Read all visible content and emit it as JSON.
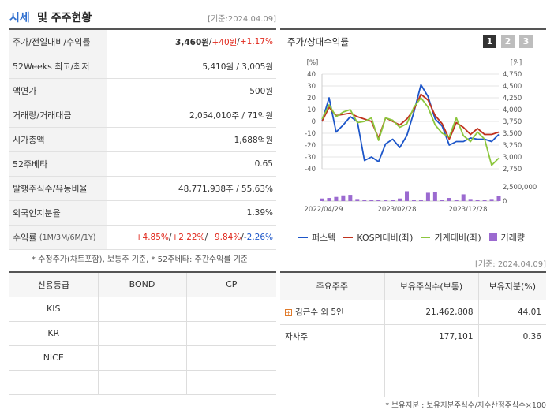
{
  "header": {
    "title_part1": "시세",
    "title_part2": "및 주주현황",
    "date": "[기준:2024.04.09]"
  },
  "price_table": {
    "rows": [
      {
        "label": "주가/전일대비/수익률",
        "price": "3,460원",
        "sep1": " / ",
        "change": "+40원",
        "sep2": " / ",
        "rate": "+1.17%"
      },
      {
        "label": "52Weeks 최고/최저",
        "value": "5,410원 / 3,005원"
      },
      {
        "label": "액면가",
        "value": "500원"
      },
      {
        "label": "거래량/거래대금",
        "value": "2,054,010주 / 71억원"
      },
      {
        "label": "시가총액",
        "value": "1,688억원"
      },
      {
        "label": "52주베타",
        "value": "0.65"
      },
      {
        "label": "발행주식수/유동비율",
        "value": "48,771,938주 / 55.63%"
      },
      {
        "label": "외국인지분율",
        "value": "1.39%"
      }
    ],
    "returns": {
      "label": "수익률",
      "periods": "(1M/3M/6M/1Y)",
      "r1": "+4.85%",
      "r2": "+2.22%",
      "r3": "+9.84%",
      "r4": "-2.26%",
      "slash": "/ "
    },
    "note": "* 수정주가(차트포함), 보통주 기준, * 52주베타: 주간수익률 기준"
  },
  "chart": {
    "title": "주가/상대수익률",
    "period_buttons": [
      "1",
      "2",
      "3"
    ],
    "active_button": "1",
    "date2": "[기준: 2024.04.09]"
  },
  "chart_data": {
    "type": "line",
    "left_axis_unit": "[%]",
    "right_axis_unit": "[원]",
    "y_left_ticks": [
      40,
      30,
      20,
      10,
      0,
      -10,
      -20,
      -30,
      -40
    ],
    "y_left_lim": [
      -40,
      40
    ],
    "y_right_ticks": [
      "4,750",
      "4,500",
      "4,250",
      "4,000",
      "3,750",
      "3,500",
      "3,250",
      "3,000",
      "2,750"
    ],
    "y_right_lim": [
      2750,
      4750
    ],
    "volume_tick": "2,500,000",
    "volume_zero": "0",
    "x_tick_labels": [
      "2022/04/29",
      "2023/02/28",
      "2023/12/28"
    ],
    "series": [
      {
        "name": "퍼스텍",
        "color": "#1d56c9",
        "values": [
          0,
          20,
          -9,
          -3,
          4,
          0,
          -33,
          -30,
          -34,
          -19,
          -15,
          -22,
          -12,
          8,
          31,
          21,
          2,
          -4,
          -20,
          -17,
          -17,
          -14,
          -15,
          -15,
          -17,
          -11
        ]
      },
      {
        "name": "KOSPI대비(좌)",
        "color": "#c0321e",
        "values": [
          0,
          12,
          5,
          6,
          7,
          4,
          2,
          0,
          -14,
          3,
          0,
          -3,
          2,
          10,
          23,
          18,
          5,
          -2,
          -15,
          -1,
          -5,
          -11,
          -6,
          -11,
          -11,
          -9
        ]
      },
      {
        "name": "기계대비(좌)",
        "color": "#8cc63e",
        "values": [
          2,
          14,
          4,
          8,
          10,
          -1,
          0,
          3,
          -16,
          3,
          1,
          -5,
          -2,
          12,
          20,
          12,
          -3,
          -10,
          -13,
          3,
          -12,
          -17,
          -9,
          -15,
          -37,
          -31
        ]
      },
      {
        "name": "거래량",
        "color": "#9b6ad0",
        "values": [
          0.5,
          0.6,
          0.8,
          1.1,
          1.2,
          0.4,
          0.3,
          0.3,
          0.2,
          0.2,
          0.3,
          0.5,
          1.9,
          0.2,
          0.2,
          1.6,
          1.7,
          0.3,
          0.6,
          0.3,
          1.3,
          0.4,
          0.3,
          0.2,
          0.4,
          1.0
        ]
      }
    ]
  },
  "credit_table": {
    "headers": [
      "신용등급",
      "BOND",
      "CP"
    ],
    "rows": [
      [
        "KIS",
        "",
        ""
      ],
      [
        "KR",
        "",
        ""
      ],
      [
        "NICE",
        "",
        ""
      ],
      [
        "",
        "",
        ""
      ]
    ]
  },
  "holders_table": {
    "headers": [
      "주요주주",
      "보유주식수(보통)",
      "보유지분(%)"
    ],
    "rows": [
      {
        "name": "김근수 외 5인",
        "shares": "21,462,808",
        "pct": "44.01",
        "expand": "+"
      },
      {
        "name": "자사주",
        "shares": "177,101",
        "pct": "0.36"
      }
    ],
    "note": "* 보유지분 : 보유지분주식수/지수산정주식수×100"
  }
}
